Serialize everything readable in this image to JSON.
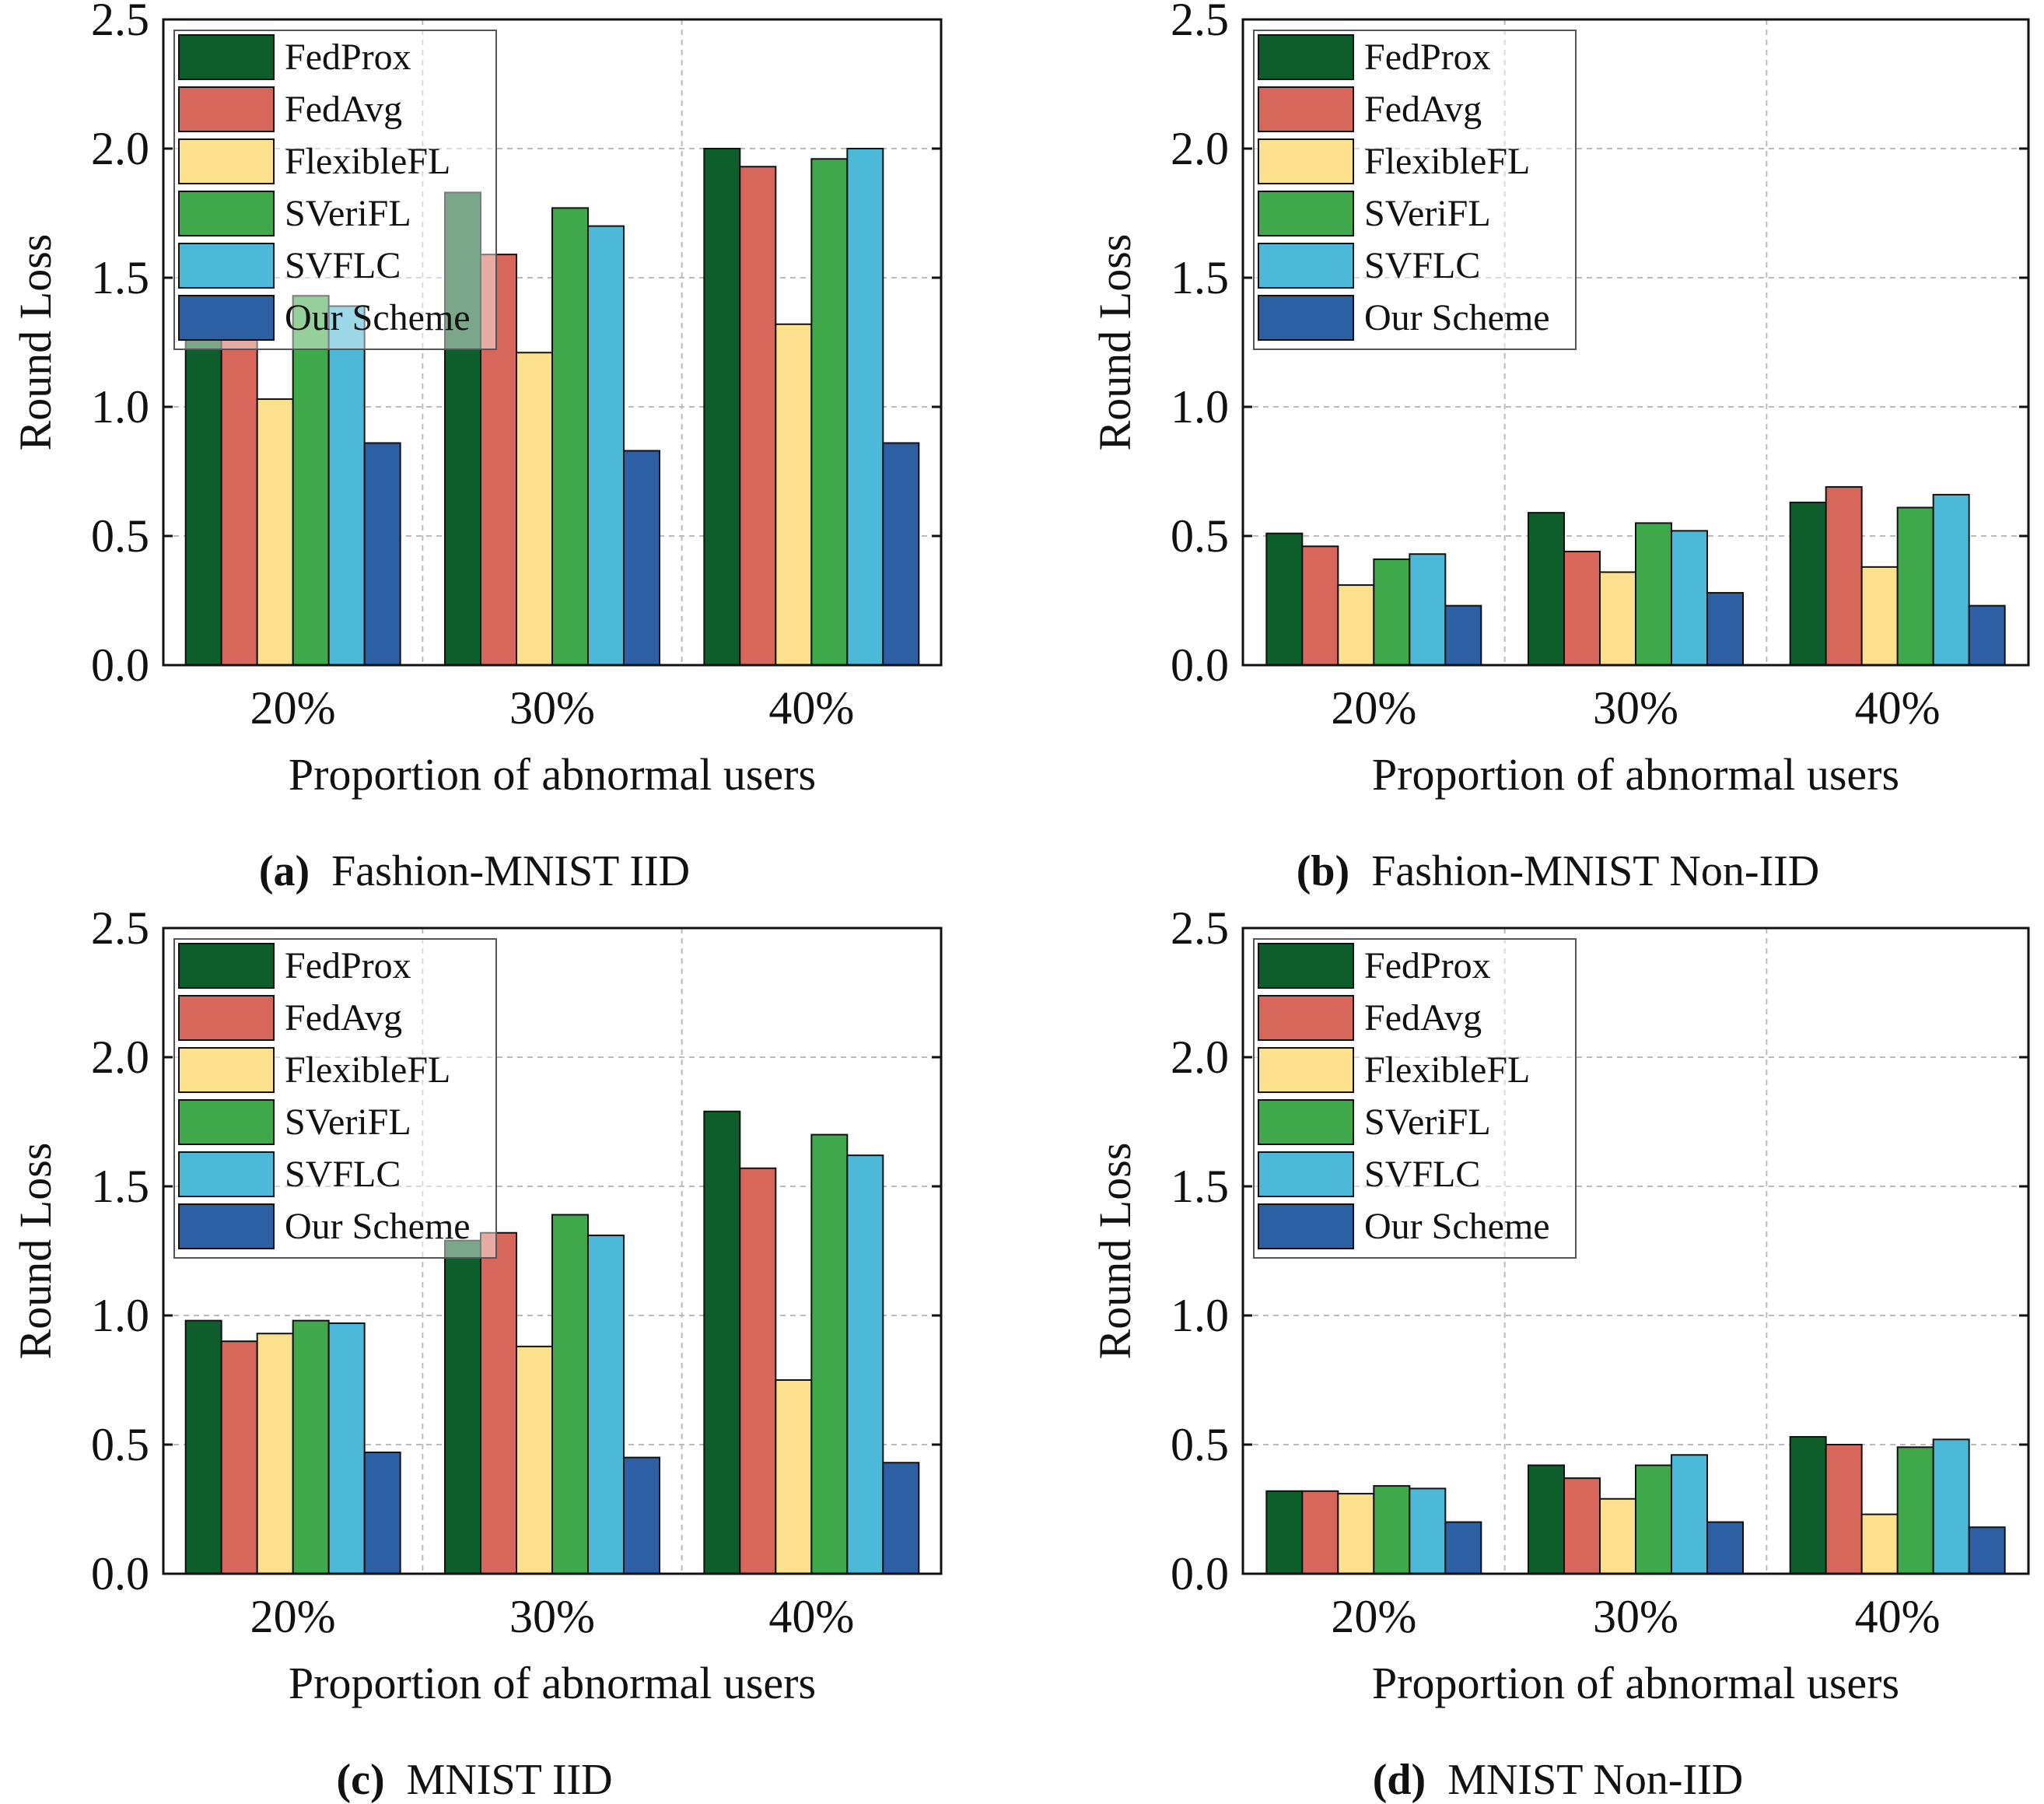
{
  "colors": {
    "series": [
      "#0e5e2b",
      "#d6675a",
      "#fde08d",
      "#3ea84a",
      "#4db9d8",
      "#2d5fa5"
    ],
    "axis": "#111111",
    "grid": "#bbbbbb"
  },
  "chart_data": [
    {
      "type": "bar",
      "panel": "a",
      "caption_tag": "(a)",
      "caption": "Fashion-MNIST IID",
      "xlabel": "Proportion of abnormal users",
      "ylabel": "Round Loss",
      "ylim": [
        0,
        2.5
      ],
      "yticks": [
        "0.0",
        "0.5",
        "1.0",
        "1.5",
        "2.0",
        "2.5"
      ],
      "categories": [
        "20%",
        "30%",
        "40%"
      ],
      "legend_position": "top-left",
      "grid": true,
      "series": [
        {
          "name": "FedProx",
          "values": [
            1.43,
            1.83,
            2.0
          ]
        },
        {
          "name": "FedAvg",
          "values": [
            1.4,
            1.59,
            1.93
          ]
        },
        {
          "name": "FlexibleFL",
          "values": [
            1.03,
            1.21,
            1.32
          ]
        },
        {
          "name": "SVeriFL",
          "values": [
            1.43,
            1.77,
            1.96
          ]
        },
        {
          "name": "SVFLC",
          "values": [
            1.39,
            1.7,
            2.0
          ]
        },
        {
          "name": "Our Scheme",
          "values": [
            0.86,
            0.83,
            0.86
          ]
        }
      ]
    },
    {
      "type": "bar",
      "panel": "b",
      "caption_tag": "(b)",
      "caption": "Fashion-MNIST Non-IID",
      "xlabel": "Proportion of abnormal users",
      "ylabel": "Round Loss",
      "ylim": [
        0,
        2.5
      ],
      "yticks": [
        "0.0",
        "0.5",
        "1.0",
        "1.5",
        "2.0",
        "2.5"
      ],
      "categories": [
        "20%",
        "30%",
        "40%"
      ],
      "legend_position": "top-left",
      "grid": true,
      "series": [
        {
          "name": "FedProx",
          "values": [
            0.51,
            0.59,
            0.63
          ]
        },
        {
          "name": "FedAvg",
          "values": [
            0.46,
            0.44,
            0.69
          ]
        },
        {
          "name": "FlexibleFL",
          "values": [
            0.31,
            0.36,
            0.38
          ]
        },
        {
          "name": "SVeriFL",
          "values": [
            0.41,
            0.55,
            0.61
          ]
        },
        {
          "name": "SVFLC",
          "values": [
            0.43,
            0.52,
            0.66
          ]
        },
        {
          "name": "Our Scheme",
          "values": [
            0.23,
            0.28,
            0.23
          ]
        }
      ]
    },
    {
      "type": "bar",
      "panel": "c",
      "caption_tag": "(c)",
      "caption": "MNIST IID",
      "xlabel": "Proportion of abnormal users",
      "ylabel": "Round Loss",
      "ylim": [
        0,
        2.5
      ],
      "yticks": [
        "0.0",
        "0.5",
        "1.0",
        "1.5",
        "2.0",
        "2.5"
      ],
      "categories": [
        "20%",
        "30%",
        "40%"
      ],
      "legend_position": "top-left",
      "grid": true,
      "series": [
        {
          "name": "FedProx",
          "values": [
            0.98,
            1.29,
            1.79
          ]
        },
        {
          "name": "FedAvg",
          "values": [
            0.9,
            1.32,
            1.57
          ]
        },
        {
          "name": "FlexibleFL",
          "values": [
            0.93,
            0.88,
            0.75
          ]
        },
        {
          "name": "SVeriFL",
          "values": [
            0.98,
            1.39,
            1.7
          ]
        },
        {
          "name": "SVFLC",
          "values": [
            0.97,
            1.31,
            1.62
          ]
        },
        {
          "name": "Our Scheme",
          "values": [
            0.47,
            0.45,
            0.43
          ]
        }
      ]
    },
    {
      "type": "bar",
      "panel": "d",
      "caption_tag": "(d)",
      "caption": "MNIST Non-IID",
      "xlabel": "Proportion of abnormal users",
      "ylabel": "Round Loss",
      "ylim": [
        0,
        2.5
      ],
      "yticks": [
        "0.0",
        "0.5",
        "1.0",
        "1.5",
        "2.0",
        "2.5"
      ],
      "categories": [
        "20%",
        "30%",
        "40%"
      ],
      "legend_position": "top-left",
      "grid": true,
      "series": [
        {
          "name": "FedProx",
          "values": [
            0.32,
            0.42,
            0.53
          ]
        },
        {
          "name": "FedAvg",
          "values": [
            0.32,
            0.37,
            0.5
          ]
        },
        {
          "name": "FlexibleFL",
          "values": [
            0.31,
            0.29,
            0.23
          ]
        },
        {
          "name": "SVeriFL",
          "values": [
            0.34,
            0.42,
            0.49
          ]
        },
        {
          "name": "SVFLC",
          "values": [
            0.33,
            0.46,
            0.52
          ]
        },
        {
          "name": "Our Scheme",
          "values": [
            0.2,
            0.2,
            0.18
          ]
        }
      ]
    }
  ]
}
